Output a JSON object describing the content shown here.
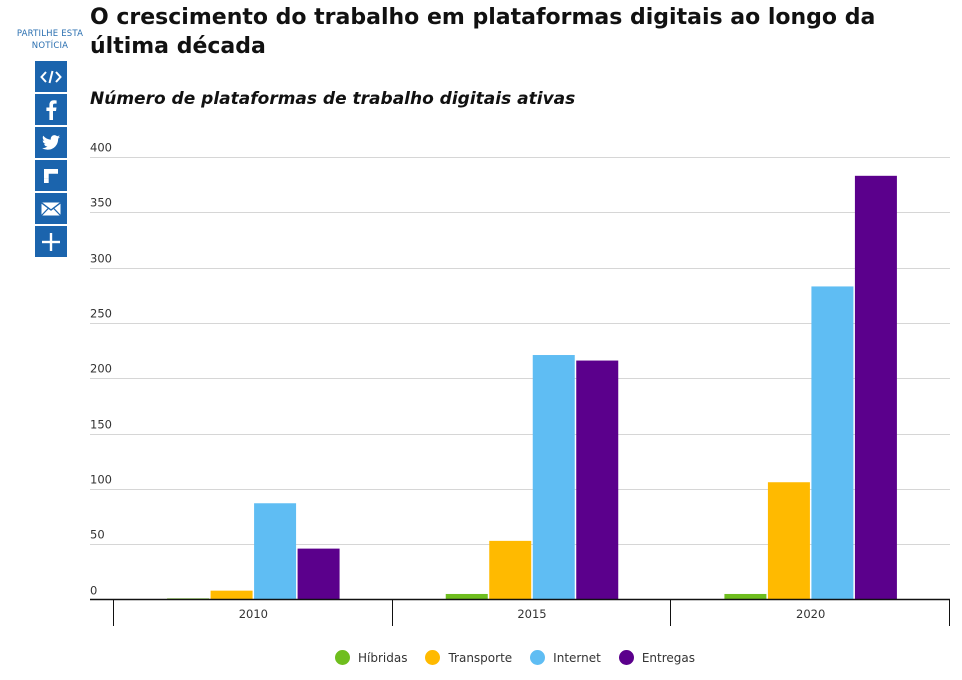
{
  "share": {
    "label": "PARTILHE ESTA NOTÍCIA",
    "buttons": [
      {
        "icon": "embed-code-icon"
      },
      {
        "icon": "facebook-icon"
      },
      {
        "icon": "twitter-icon"
      },
      {
        "icon": "flipboard-icon"
      },
      {
        "icon": "email-icon"
      },
      {
        "icon": "plus-icon"
      }
    ]
  },
  "title": "O crescimento do trabalho em plataformas digitais ao longo da última década",
  "subtitle": "Número de plataformas de trabalho digitais ativas",
  "chart_data": {
    "type": "bar",
    "categories": [
      "2010",
      "2015",
      "2020"
    ],
    "series": [
      {
        "name": "Híbridas",
        "color": "#6fbe1e",
        "values": [
          1,
          5,
          5
        ]
      },
      {
        "name": "Transporte",
        "color": "#ffba00",
        "values": [
          8,
          53,
          106
        ]
      },
      {
        "name": "Internet",
        "color": "#5fbdf3",
        "values": [
          87,
          221,
          283
        ]
      },
      {
        "name": "Entregas",
        "color": "#5b008c",
        "values": [
          46,
          216,
          383
        ]
      }
    ],
    "yticks": [
      0,
      50,
      100,
      150,
      200,
      250,
      300,
      350,
      400
    ],
    "ylim": [
      0,
      400
    ],
    "grid": true,
    "legend": "bottom"
  }
}
